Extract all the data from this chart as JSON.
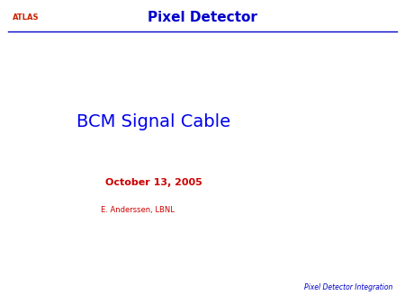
{
  "background_color": "#ffffff",
  "header_title": "Pixel Detector",
  "header_title_color": "#0000cc",
  "header_title_fontsize": 11,
  "atlas_label": "ATLAS",
  "atlas_label_color": "#cc2200",
  "atlas_label_fontsize": 6,
  "line_color": "#0000cc",
  "main_title": "BCM Signal Cable",
  "main_title_color": "#0000ee",
  "main_title_fontsize": 14,
  "date_text": "October 13, 2005",
  "date_color": "#cc0000",
  "date_fontsize": 8,
  "author_text": "E. Anderssen, LBNL",
  "author_color": "#cc0000",
  "author_fontsize": 6,
  "footer_text": "Pixel Detector Integration",
  "footer_color": "#0000cc",
  "footer_fontsize": 5.5
}
